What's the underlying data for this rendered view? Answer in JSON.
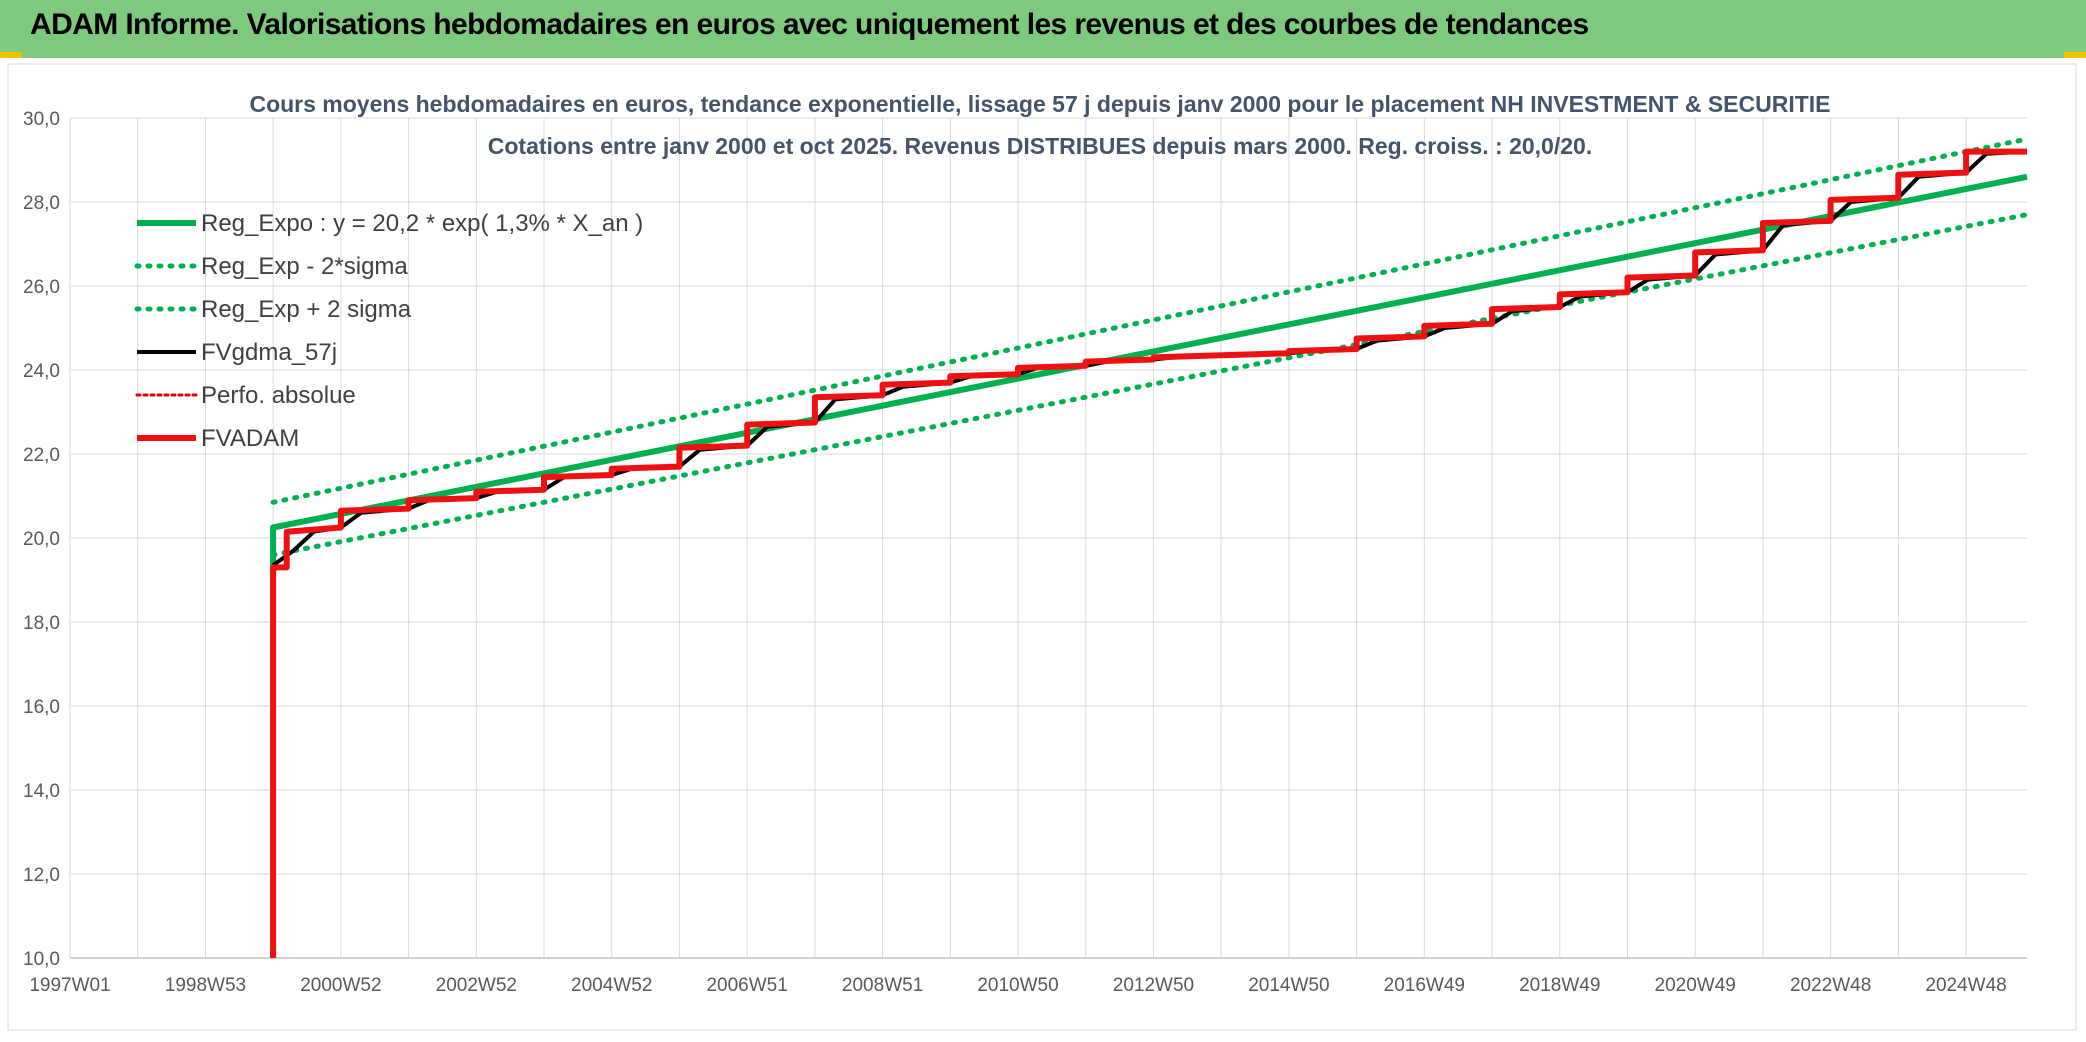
{
  "banner": {
    "title": "ADAM Informe. Valorisations hebdomadaires en euros avec uniquement les revenus et des courbes de tendances"
  },
  "chart_data": {
    "type": "line",
    "title": "Cours moyens hebdomadaires en euros, tendance exponentielle, lissage 57 j depuis janv 2000 pour le placement NH INVESTMENT & SECURITIE",
    "subtitle": "Cotations entre janv 2000 et oct 2025. Revenus DISTRIBUES depuis mars 2000. Reg. croiss. : 20,0/20.",
    "xlabel": "",
    "ylabel": "",
    "x_axis": {
      "type": "date",
      "range": [
        1997.0,
        2025.9
      ],
      "tick_years": [
        1997.0,
        1999.0,
        2001.0,
        2003.0,
        2005.0,
        2007.0,
        2009.0,
        2011.0,
        2013.0,
        2015.0,
        2017.0,
        2019.0,
        2021.0,
        2023.0,
        2025.0
      ],
      "tick_labels": [
        "1997W01",
        "1998W53",
        "2000W52",
        "2002W52",
        "2004W52",
        "2006W51",
        "2008W51",
        "2010W50",
        "2012W50",
        "2014W50",
        "2016W49",
        "2018W49",
        "2020W49",
        "2022W48",
        "2024W48"
      ]
    },
    "y_axis": {
      "range": [
        10,
        30
      ],
      "ticks": [
        10,
        12,
        14,
        16,
        18,
        20,
        22,
        24,
        26,
        28,
        30
      ],
      "tick_labels": [
        "10,0",
        "12,0",
        "14,0",
        "16,0",
        "18,0",
        "20,0",
        "22,0",
        "24,0",
        "26,0",
        "28,0",
        "30,0"
      ]
    },
    "grid": true,
    "legend_position": "top-left",
    "series": [
      {
        "name": "Reg_Expo : y = 20,2 * exp( 1,3% *  X_an )",
        "color": "#00b050",
        "style": "solid",
        "x": [
          2000.0,
          2000.0,
          2025.9
        ],
        "y": [
          10.0,
          20.25,
          28.6
        ]
      },
      {
        "name": "Reg_Exp - 2*sigma",
        "color": "#00b050",
        "style": "dotted",
        "x": [
          2000.0,
          2025.9
        ],
        "y": [
          19.6,
          27.7
        ]
      },
      {
        "name": "Reg_Exp + 2 sigma",
        "color": "#00b050",
        "style": "dotted",
        "x": [
          2000.0,
          2025.9
        ],
        "y": [
          20.85,
          29.5
        ]
      },
      {
        "name": "FVgdma_57j",
        "color": "#000000",
        "style": "solid",
        "x": [
          2000.0,
          2000.3,
          2000.6,
          2001.0,
          2001.3,
          2002.0,
          2002.3,
          2003.0,
          2003.3,
          2004.0,
          2004.3,
          2005.0,
          2005.3,
          2006.0,
          2006.3,
          2007.0,
          2007.3,
          2008.0,
          2008.3,
          2009.0,
          2009.3,
          2010.0,
          2010.3,
          2011.0,
          2011.3,
          2012.0,
          2012.3,
          2013.0,
          2013.3,
          2014.0,
          2014.3,
          2015.0,
          2015.3,
          2016.0,
          2016.3,
          2017.0,
          2017.3,
          2018.0,
          2018.3,
          2019.0,
          2019.3,
          2020.0,
          2020.3,
          2021.0,
          2021.3,
          2022.0,
          2022.3,
          2023.0,
          2023.3,
          2024.0,
          2024.3,
          2025.0,
          2025.3,
          2025.9
        ],
        "y": [
          19.35,
          19.7,
          20.15,
          20.25,
          20.6,
          20.7,
          20.9,
          20.95,
          21.1,
          21.15,
          21.45,
          21.5,
          21.65,
          21.7,
          22.1,
          22.2,
          22.65,
          22.75,
          23.3,
          23.4,
          23.6,
          23.7,
          23.85,
          23.9,
          24.05,
          24.1,
          24.2,
          24.25,
          24.3,
          24.35,
          24.35,
          24.4,
          24.45,
          24.5,
          24.7,
          24.8,
          25.0,
          25.1,
          25.4,
          25.5,
          25.75,
          25.85,
          26.15,
          26.25,
          26.75,
          26.85,
          27.45,
          27.55,
          28.0,
          28.1,
          28.6,
          28.7,
          29.15,
          29.2
        ]
      },
      {
        "name": "Perfo. absolue",
        "color": "#e00000",
        "style": "dotted",
        "x": [],
        "y": []
      },
      {
        "name": "FVADAM",
        "color": "#ee1111",
        "style": "solid",
        "x": [
          2000.0,
          2000.0,
          2000.2,
          2000.2,
          2001.0,
          2001.0,
          2002.0,
          2002.0,
          2003.0,
          2003.0,
          2004.0,
          2004.0,
          2005.0,
          2005.0,
          2006.0,
          2006.0,
          2007.0,
          2007.0,
          2008.0,
          2008.0,
          2009.0,
          2009.0,
          2010.0,
          2010.0,
          2011.0,
          2011.0,
          2012.0,
          2012.0,
          2013.0,
          2013.0,
          2014.0,
          2014.0,
          2015.0,
          2015.0,
          2016.0,
          2016.0,
          2017.0,
          2017.0,
          2018.0,
          2018.0,
          2019.0,
          2019.0,
          2020.0,
          2020.0,
          2021.0,
          2021.0,
          2022.0,
          2022.0,
          2023.0,
          2023.0,
          2024.0,
          2024.0,
          2025.0,
          2025.0,
          2025.9
        ],
        "y": [
          10.0,
          19.3,
          19.3,
          20.15,
          20.25,
          20.65,
          20.7,
          20.9,
          20.95,
          21.1,
          21.15,
          21.45,
          21.5,
          21.65,
          21.7,
          22.15,
          22.2,
          22.7,
          22.75,
          23.35,
          23.4,
          23.65,
          23.7,
          23.85,
          23.9,
          24.05,
          24.1,
          24.2,
          24.25,
          24.3,
          24.35,
          24.35,
          24.4,
          24.45,
          24.5,
          24.75,
          24.8,
          25.05,
          25.1,
          25.45,
          25.5,
          25.8,
          25.85,
          26.2,
          26.25,
          26.8,
          26.85,
          27.5,
          27.55,
          28.05,
          28.1,
          28.65,
          28.7,
          29.2,
          29.2
        ]
      }
    ]
  }
}
